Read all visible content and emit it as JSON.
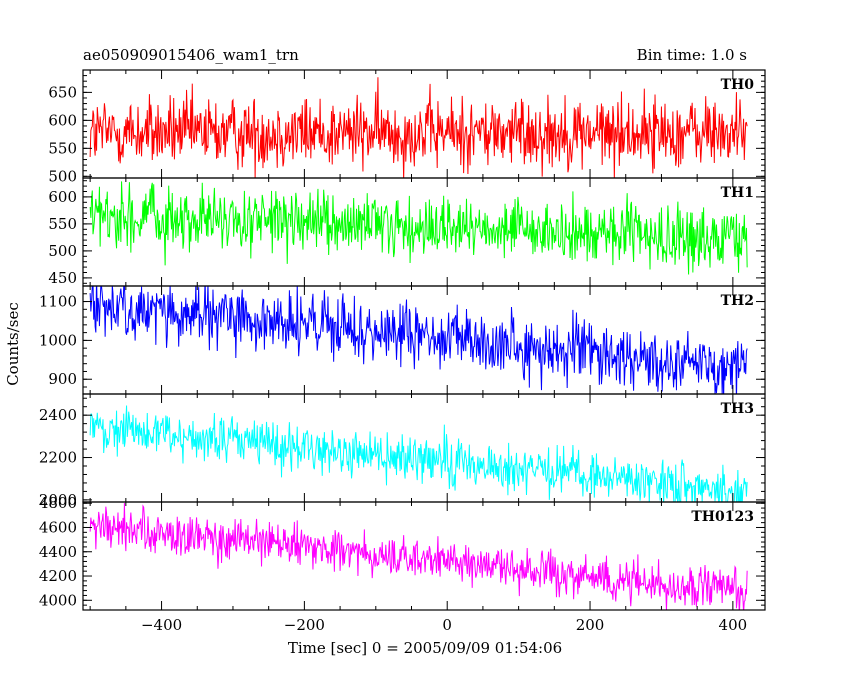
{
  "header": {
    "title": "ae050909015406_wam1_trn",
    "bin_time": "Bin time: 1.0 s"
  },
  "axes": {
    "xlabel": "Time [sec] 0 = 2005/09/09 01:54:06",
    "ylabel": "Counts/sec",
    "xlim": [
      -510,
      445
    ],
    "xticks": [
      -400,
      -200,
      0,
      200,
      400
    ],
    "xtick_labels": [
      "−400",
      "−200",
      "0",
      "200",
      "400"
    ]
  },
  "chart_data": [
    {
      "type": "line",
      "title": "TH0",
      "color": "#ff0000",
      "ylim": [
        497,
        690
      ],
      "yticks": [
        500,
        550,
        600,
        650
      ],
      "trend": {
        "x": [
          -500,
          420
        ],
        "y": [
          578,
          578
        ]
      },
      "noise_sd": 32,
      "x_range": [
        -500,
        420
      ],
      "series": [
        {
          "name": "TH0",
          "values": [
            {
              "x": -500,
              "y": 580
            },
            {
              "x": -400,
              "y": 582
            },
            {
              "x": -300,
              "y": 579
            },
            {
              "x": -200,
              "y": 578
            },
            {
              "x": -100,
              "y": 582
            },
            {
              "x": 0,
              "y": 585
            },
            {
              "x": 100,
              "y": 580
            },
            {
              "x": 200,
              "y": 578
            },
            {
              "x": 300,
              "y": 575
            },
            {
              "x": 420,
              "y": 575
            }
          ]
        }
      ]
    },
    {
      "type": "line",
      "title": "TH1",
      "color": "#00ff00",
      "ylim": [
        435,
        635
      ],
      "yticks": [
        450,
        500,
        550,
        600
      ],
      "trend": {
        "x": [
          -500,
          420
        ],
        "y": [
          565,
          520
        ]
      },
      "noise_sd": 28,
      "x_range": [
        -500,
        420
      ],
      "series": [
        {
          "name": "TH1",
          "values": [
            {
              "x": -500,
              "y": 565
            },
            {
              "x": -400,
              "y": 560
            },
            {
              "x": -300,
              "y": 555
            },
            {
              "x": -200,
              "y": 550
            },
            {
              "x": -100,
              "y": 545
            },
            {
              "x": 0,
              "y": 540
            },
            {
              "x": 100,
              "y": 535
            },
            {
              "x": 200,
              "y": 530
            },
            {
              "x": 300,
              "y": 525
            },
            {
              "x": 420,
              "y": 520
            }
          ]
        }
      ]
    },
    {
      "type": "line",
      "title": "TH2",
      "color": "#0000ff",
      "ylim": [
        862,
        1140
      ],
      "yticks": [
        900,
        1000,
        1100
      ],
      "trend": {
        "x": [
          -500,
          420
        ],
        "y": [
          1090,
          930
        ]
      },
      "noise_sd": 40,
      "x_range": [
        -500,
        420
      ],
      "series": [
        {
          "name": "TH2",
          "values": [
            {
              "x": -500,
              "y": 1090
            },
            {
              "x": -400,
              "y": 1075
            },
            {
              "x": -300,
              "y": 1060
            },
            {
              "x": -200,
              "y": 1040
            },
            {
              "x": -100,
              "y": 1025
            },
            {
              "x": 0,
              "y": 1005
            },
            {
              "x": 100,
              "y": 985
            },
            {
              "x": 200,
              "y": 965
            },
            {
              "x": 300,
              "y": 950
            },
            {
              "x": 420,
              "y": 930
            }
          ]
        }
      ]
    },
    {
      "type": "line",
      "title": "TH3",
      "color": "#00ffff",
      "ylim": [
        1990,
        2500
      ],
      "yticks": [
        2000,
        2200,
        2400
      ],
      "trend": {
        "x": [
          -500,
          420
        ],
        "y": [
          2345,
          2040
        ]
      },
      "noise_sd": 55,
      "x_range": [
        -500,
        420
      ],
      "series": [
        {
          "name": "TH3",
          "values": [
            {
              "x": -500,
              "y": 2345
            },
            {
              "x": -400,
              "y": 2310
            },
            {
              "x": -300,
              "y": 2280
            },
            {
              "x": -200,
              "y": 2250
            },
            {
              "x": -100,
              "y": 2215
            },
            {
              "x": 0,
              "y": 2185
            },
            {
              "x": 100,
              "y": 2150
            },
            {
              "x": 200,
              "y": 2115
            },
            {
              "x": 300,
              "y": 2080
            },
            {
              "x": 420,
              "y": 2040
            }
          ]
        }
      ]
    },
    {
      "type": "line",
      "title": "TH0123",
      "color": "#ff00ff",
      "ylim": [
        3920,
        4810
      ],
      "yticks": [
        4000,
        4200,
        4400,
        4600,
        4800
      ],
      "trend": {
        "x": [
          -500,
          420
        ],
        "y": [
          4610,
          4065
        ]
      },
      "noise_sd": 85,
      "x_range": [
        -500,
        420
      ],
      "series": [
        {
          "name": "TH0123",
          "values": [
            {
              "x": -500,
              "y": 4610
            },
            {
              "x": -400,
              "y": 4550
            },
            {
              "x": -300,
              "y": 4490
            },
            {
              "x": -200,
              "y": 4430
            },
            {
              "x": -100,
              "y": 4375
            },
            {
              "x": 0,
              "y": 4315
            },
            {
              "x": 100,
              "y": 4255
            },
            {
              "x": 200,
              "y": 4195
            },
            {
              "x": 300,
              "y": 4130
            },
            {
              "x": 420,
              "y": 4065
            }
          ]
        }
      ]
    }
  ]
}
